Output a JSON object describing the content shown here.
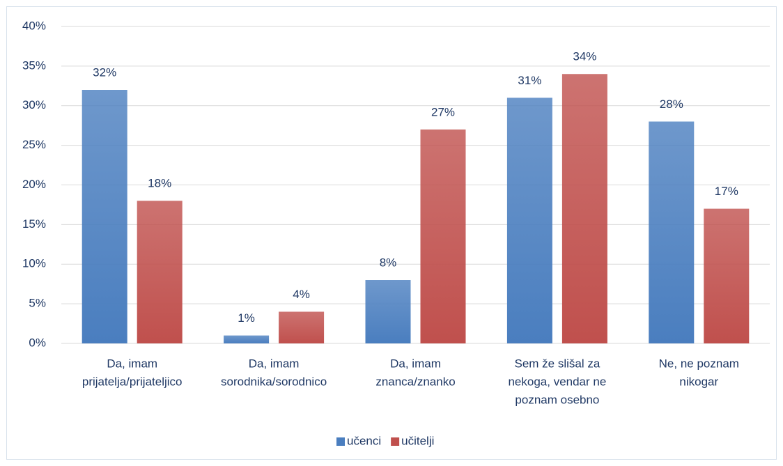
{
  "chart_data": {
    "type": "bar",
    "categories": [
      [
        "Da, imam",
        "prijatelja/prijateljico"
      ],
      [
        "Da, imam",
        "sorodnika/sorodnico"
      ],
      [
        "Da, imam",
        "znanca/znanko"
      ],
      [
        "Sem že slišal za",
        "nekoga, vendar ne",
        "poznam osebno"
      ],
      [
        "Ne, ne poznam",
        "nikogar"
      ]
    ],
    "series": [
      {
        "name": "učenci",
        "color": "#4a7ebf",
        "values": [
          32,
          1,
          8,
          31,
          28
        ],
        "value_labels": [
          "32%",
          "1%",
          "8%",
          "31%",
          "28%"
        ]
      },
      {
        "name": "učitelji",
        "color": "#c0504d",
        "values": [
          18,
          4,
          27,
          34,
          17
        ],
        "value_labels": [
          "18%",
          "4%",
          "27%",
          "34%",
          "17%"
        ]
      }
    ],
    "ylim": [
      0,
      40
    ],
    "yticks": [
      {
        "value": 0,
        "label": "0%"
      },
      {
        "value": 5,
        "label": "5%"
      },
      {
        "value": 10,
        "label": "10%"
      },
      {
        "value": 15,
        "label": "15%"
      },
      {
        "value": 20,
        "label": "20%"
      },
      {
        "value": 25,
        "label": "25%"
      },
      {
        "value": 30,
        "label": "30%"
      },
      {
        "value": 35,
        "label": "35%"
      },
      {
        "value": 40,
        "label": "40%"
      }
    ],
    "grid": true,
    "legend": "bottom"
  }
}
